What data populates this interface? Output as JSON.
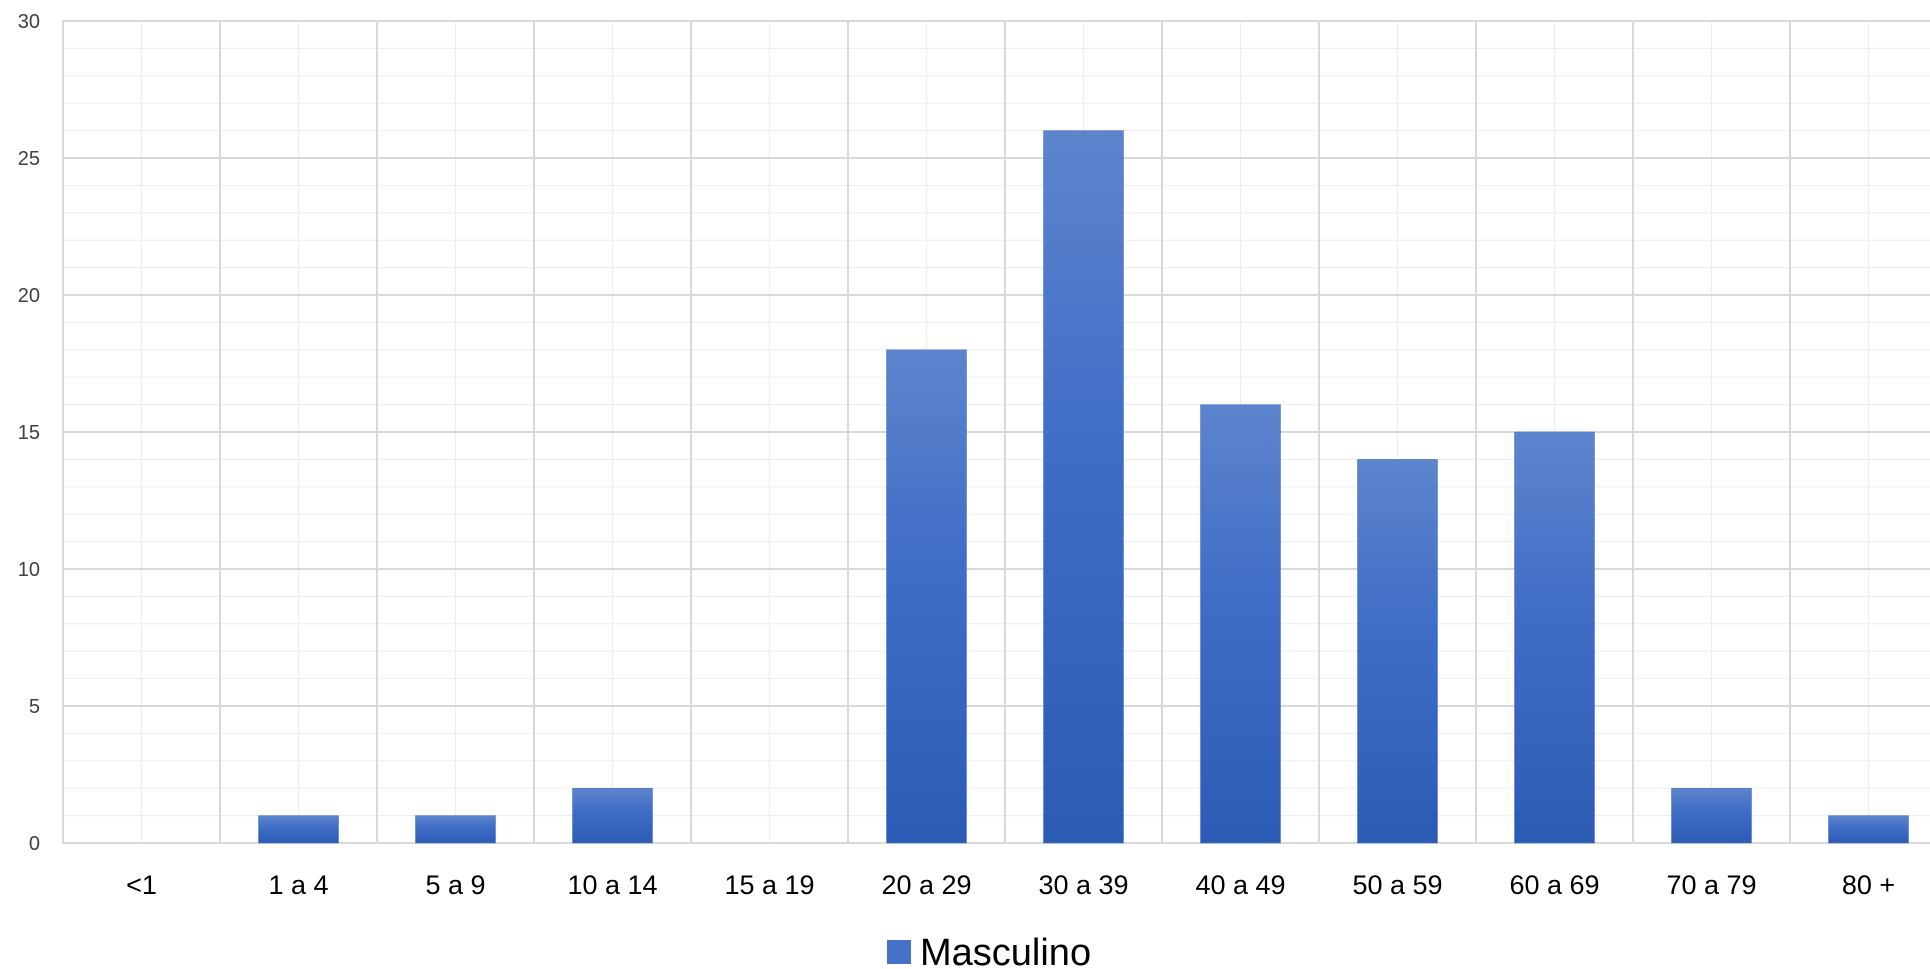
{
  "chart_data": {
    "type": "bar",
    "categories": [
      "<1",
      "1 a 4",
      "5 a 9",
      "10 a 14",
      "15 a 19",
      "20 a 29",
      "30 a 39",
      "40 a 49",
      "50 a 59",
      "60 a 69",
      "70 a 79",
      "80 +"
    ],
    "series": [
      {
        "name": "Masculino",
        "values": [
          0,
          1,
          1,
          2,
          0,
          18,
          26,
          16,
          14,
          15,
          2,
          1
        ],
        "color": "#4472C4"
      }
    ],
    "ylim": [
      0,
      30
    ],
    "yticks": [
      "0",
      "5",
      "10",
      "15",
      "20",
      "25",
      "30"
    ],
    "grid": true,
    "legend_position": "bottom"
  }
}
